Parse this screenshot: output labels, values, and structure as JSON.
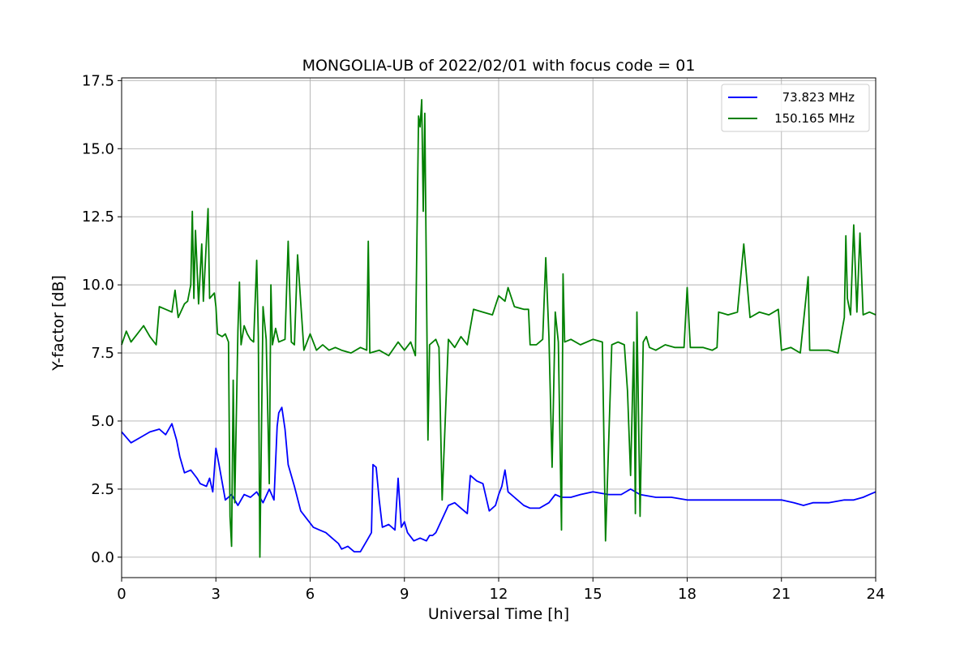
{
  "chart_data": {
    "type": "line",
    "title": "MONGOLIA-UB of 2022/02/01 with focus code = 01",
    "xlabel": "Universal Time [h]",
    "ylabel": "Y-factor [dB]",
    "xlim": [
      0,
      24
    ],
    "ylim": [
      -0.75,
      17.6
    ],
    "xticks": [
      "0",
      "3",
      "6",
      "9",
      "12",
      "15",
      "18",
      "21",
      "24"
    ],
    "yticks": [
      "0.0",
      "2.5",
      "5.0",
      "7.5",
      "10.0",
      "12.5",
      "15.0",
      "17.5"
    ],
    "grid": true,
    "legend_position": "top-right",
    "series": [
      {
        "name": "73.823 MHz",
        "color": "#0000ff",
        "x": [
          0.0,
          0.3,
          0.6,
          0.9,
          1.2,
          1.4,
          1.6,
          1.75,
          1.85,
          2.0,
          2.2,
          2.4,
          2.5,
          2.7,
          2.8,
          2.9,
          3.0,
          3.1,
          3.3,
          3.5,
          3.7,
          3.9,
          4.1,
          4.3,
          4.5,
          4.7,
          4.85,
          4.95,
          5.0,
          5.1,
          5.2,
          5.3,
          5.5,
          5.7,
          5.9,
          6.1,
          6.3,
          6.5,
          6.7,
          6.9,
          7.0,
          7.2,
          7.4,
          7.6,
          7.8,
          7.95,
          8.0,
          8.1,
          8.2,
          8.3,
          8.5,
          8.7,
          8.8,
          8.9,
          9.0,
          9.1,
          9.3,
          9.5,
          9.7,
          9.8,
          9.9,
          10.0,
          10.2,
          10.4,
          10.6,
          10.8,
          11.0,
          11.1,
          11.3,
          11.5,
          11.7,
          11.9,
          12.0,
          12.1,
          12.2,
          12.3,
          12.5,
          12.8,
          13.0,
          13.3,
          13.6,
          13.8,
          14.0,
          14.3,
          14.6,
          15.0,
          15.5,
          15.9,
          16.2,
          16.5,
          17.0,
          17.5,
          18.0,
          18.5,
          19.0,
          19.5,
          20.0,
          20.5,
          21.0,
          21.4,
          21.7,
          22.0,
          22.5,
          23.0,
          23.3,
          23.6,
          23.8,
          24.0
        ],
        "values": [
          4.6,
          4.2,
          4.4,
          4.6,
          4.7,
          4.5,
          4.9,
          4.3,
          3.7,
          3.1,
          3.2,
          2.9,
          2.7,
          2.6,
          2.9,
          2.4,
          4.0,
          3.4,
          2.1,
          2.3,
          1.9,
          2.3,
          2.2,
          2.4,
          2.0,
          2.5,
          2.1,
          4.8,
          5.3,
          5.5,
          4.7,
          3.4,
          2.6,
          1.7,
          1.4,
          1.1,
          1.0,
          0.9,
          0.7,
          0.5,
          0.3,
          0.4,
          0.2,
          0.2,
          0.6,
          0.9,
          3.4,
          3.3,
          2.1,
          1.1,
          1.2,
          1.0,
          2.9,
          1.1,
          1.3,
          0.9,
          0.6,
          0.7,
          0.6,
          0.8,
          0.8,
          0.9,
          1.4,
          1.9,
          2.0,
          1.8,
          1.6,
          3.0,
          2.8,
          2.7,
          1.7,
          1.9,
          2.3,
          2.6,
          3.2,
          2.4,
          2.2,
          1.9,
          1.8,
          1.8,
          2.0,
          2.3,
          2.2,
          2.2,
          2.3,
          2.4,
          2.3,
          2.3,
          2.5,
          2.3,
          2.2,
          2.2,
          2.1,
          2.1,
          2.1,
          2.1,
          2.1,
          2.1,
          2.1,
          2.0,
          1.9,
          2.0,
          2.0,
          2.1,
          2.1,
          2.2,
          2.3,
          2.4
        ]
      },
      {
        "name": "150.165 MHz",
        "color": "#008000",
        "x": [
          0.0,
          0.15,
          0.3,
          0.5,
          0.7,
          0.9,
          1.1,
          1.2,
          1.4,
          1.6,
          1.7,
          1.8,
          2.0,
          2.1,
          2.2,
          2.25,
          2.3,
          2.35,
          2.45,
          2.55,
          2.6,
          2.75,
          2.8,
          2.95,
          3.0,
          3.05,
          3.2,
          3.3,
          3.4,
          3.45,
          3.5,
          3.55,
          3.6,
          3.7,
          3.75,
          3.8,
          3.9,
          4.0,
          4.1,
          4.2,
          4.3,
          4.35,
          4.4,
          4.5,
          4.6,
          4.7,
          4.75,
          4.8,
          4.9,
          5.0,
          5.2,
          5.3,
          5.4,
          5.5,
          5.6,
          5.8,
          6.0,
          6.2,
          6.4,
          6.6,
          6.8,
          7.0,
          7.3,
          7.6,
          7.8,
          7.85,
          7.9,
          8.2,
          8.5,
          8.8,
          9.0,
          9.2,
          9.35,
          9.45,
          9.5,
          9.55,
          9.6,
          9.65,
          9.7,
          9.75,
          9.8,
          10.0,
          10.1,
          10.2,
          10.4,
          10.6,
          10.8,
          11.0,
          11.2,
          11.5,
          11.8,
          12.0,
          12.2,
          12.3,
          12.5,
          12.8,
          12.95,
          13.0,
          13.2,
          13.4,
          13.5,
          13.6,
          13.7,
          13.8,
          13.9,
          14.0,
          14.05,
          14.1,
          14.3,
          14.6,
          15.0,
          15.3,
          15.4,
          15.6,
          15.8,
          16.0,
          16.1,
          16.2,
          16.3,
          16.35,
          16.4,
          16.5,
          16.6,
          16.7,
          16.8,
          17.0,
          17.3,
          17.6,
          17.9,
          18.0,
          18.1,
          18.5,
          18.8,
          18.95,
          19.0,
          19.3,
          19.6,
          19.8,
          20.0,
          20.3,
          20.6,
          20.9,
          21.0,
          21.3,
          21.6,
          21.85,
          21.9,
          22.2,
          22.5,
          22.8,
          23.0,
          23.05,
          23.1,
          23.2,
          23.3,
          23.4,
          23.5,
          23.6,
          23.8,
          24.0
        ],
        "values": [
          7.8,
          8.3,
          7.9,
          8.2,
          8.5,
          8.1,
          7.8,
          9.2,
          9.1,
          9.0,
          9.8,
          8.8,
          9.3,
          9.4,
          10.0,
          12.7,
          9.5,
          12.0,
          9.3,
          11.5,
          9.4,
          12.8,
          9.5,
          9.7,
          9.2,
          8.2,
          8.1,
          8.2,
          7.9,
          1.5,
          0.4,
          6.5,
          2.0,
          8.3,
          10.1,
          7.8,
          8.5,
          8.2,
          8.0,
          7.9,
          10.9,
          8.1,
          0.0,
          9.2,
          8.0,
          2.7,
          10.0,
          7.8,
          8.4,
          7.9,
          8.0,
          11.6,
          7.9,
          7.8,
          11.1,
          7.6,
          8.2,
          7.6,
          7.8,
          7.6,
          7.7,
          7.6,
          7.5,
          7.7,
          7.6,
          11.6,
          7.5,
          7.6,
          7.4,
          7.9,
          7.6,
          7.9,
          7.4,
          16.2,
          15.8,
          16.8,
          12.7,
          16.3,
          10.2,
          4.3,
          7.8,
          8.0,
          7.7,
          2.1,
          8.0,
          7.7,
          8.1,
          7.8,
          9.1,
          9.0,
          8.9,
          9.6,
          9.4,
          9.9,
          9.2,
          9.1,
          9.1,
          7.8,
          7.8,
          8.0,
          11.0,
          8.1,
          3.3,
          9.0,
          7.9,
          1.0,
          10.4,
          7.9,
          8.0,
          7.8,
          8.0,
          7.9,
          0.6,
          7.8,
          7.9,
          7.8,
          6.1,
          3.0,
          7.9,
          1.6,
          9.0,
          1.5,
          7.9,
          8.1,
          7.7,
          7.6,
          7.8,
          7.7,
          7.7,
          9.9,
          7.7,
          7.7,
          7.6,
          7.7,
          9.0,
          8.9,
          9.0,
          11.5,
          8.8,
          9.0,
          8.9,
          9.1,
          7.6,
          7.7,
          7.5,
          10.3,
          7.6,
          7.6,
          7.6,
          7.5,
          8.8,
          11.8,
          9.5,
          8.9,
          12.2,
          9.0,
          11.9,
          8.9,
          9.0,
          8.9
        ]
      }
    ]
  }
}
